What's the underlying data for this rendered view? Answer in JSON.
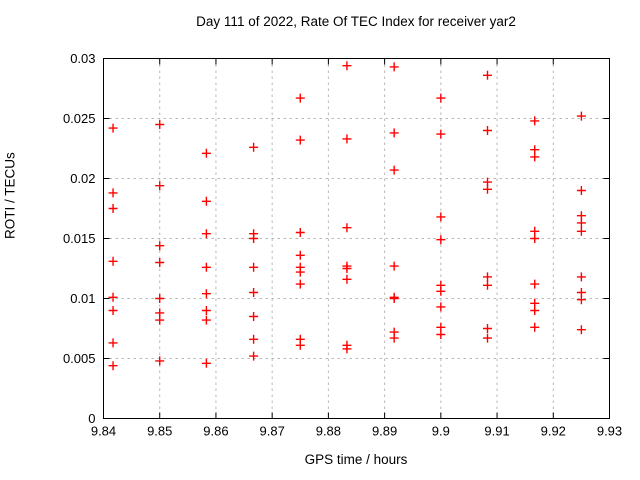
{
  "page": {
    "background": "#ffffff",
    "text_color": "#000000",
    "grid_color": "#b8b8b8",
    "axis_color": "#000000"
  },
  "chart_data": {
    "type": "scatter",
    "title": "Day 111 of 2022, Rate Of TEC Index for receiver yar2",
    "xlabel": "GPS time / hours",
    "ylabel": "ROTI / TECUs",
    "xlim": [
      9.84,
      9.93
    ],
    "ylim": [
      0,
      0.03
    ],
    "xticks": {
      "values": [
        9.84,
        9.85,
        9.86,
        9.87,
        9.88,
        9.89,
        9.9,
        9.91,
        9.92,
        9.93
      ],
      "labels": [
        "9.84",
        "9.85",
        "9.86",
        "9.87",
        "9.88",
        "9.89",
        "9.9",
        "9.91",
        "9.92",
        "9.93"
      ]
    },
    "yticks": {
      "values": [
        0,
        0.005,
        0.01,
        0.015,
        0.02,
        0.025,
        0.03
      ],
      "labels": [
        "0",
        "0.005",
        "0.01",
        "0.015",
        "0.02",
        "0.025",
        "0.03"
      ]
    },
    "grid": true,
    "legend": "none",
    "marker": {
      "shape": "plus",
      "color": "#ff0000",
      "size": 9
    },
    "series": [
      {
        "name": "ROTI",
        "points": [
          [
            9.8417,
            0.0242
          ],
          [
            9.8417,
            0.0188
          ],
          [
            9.8417,
            0.0175
          ],
          [
            9.8417,
            0.0131
          ],
          [
            9.8417,
            0.0101
          ],
          [
            9.8417,
            0.009
          ],
          [
            9.8417,
            0.0063
          ],
          [
            9.8417,
            0.0044
          ],
          [
            9.85,
            0.0245
          ],
          [
            9.85,
            0.0194
          ],
          [
            9.85,
            0.0144
          ],
          [
            9.85,
            0.013
          ],
          [
            9.85,
            0.01
          ],
          [
            9.85,
            0.0088
          ],
          [
            9.85,
            0.0082
          ],
          [
            9.85,
            0.0048
          ],
          [
            9.8583,
            0.0221
          ],
          [
            9.8583,
            0.0181
          ],
          [
            9.8583,
            0.0154
          ],
          [
            9.8583,
            0.0126
          ],
          [
            9.8583,
            0.0104
          ],
          [
            9.8583,
            0.009
          ],
          [
            9.8583,
            0.0082
          ],
          [
            9.8583,
            0.0046
          ],
          [
            9.8667,
            0.0226
          ],
          [
            9.8667,
            0.0154
          ],
          [
            9.8667,
            0.015
          ],
          [
            9.8667,
            0.0126
          ],
          [
            9.8667,
            0.0105
          ],
          [
            9.8667,
            0.0085
          ],
          [
            9.8667,
            0.0066
          ],
          [
            9.8667,
            0.0052
          ],
          [
            9.875,
            0.0267
          ],
          [
            9.875,
            0.0232
          ],
          [
            9.875,
            0.0155
          ],
          [
            9.875,
            0.0136
          ],
          [
            9.875,
            0.0126
          ],
          [
            9.875,
            0.0122
          ],
          [
            9.875,
            0.0112
          ],
          [
            9.875,
            0.0066
          ],
          [
            9.875,
            0.0061
          ],
          [
            9.8833,
            0.0294
          ],
          [
            9.8833,
            0.0233
          ],
          [
            9.8833,
            0.0159
          ],
          [
            9.8833,
            0.0127
          ],
          [
            9.8833,
            0.0125
          ],
          [
            9.8833,
            0.0116
          ],
          [
            9.8833,
            0.0061
          ],
          [
            9.8833,
            0.0058
          ],
          [
            9.8917,
            0.0293
          ],
          [
            9.8917,
            0.0238
          ],
          [
            9.8917,
            0.0207
          ],
          [
            9.8917,
            0.0127
          ],
          [
            9.8917,
            0.0101
          ],
          [
            9.8917,
            0.01
          ],
          [
            9.8917,
            0.0072
          ],
          [
            9.8917,
            0.0067
          ],
          [
            9.9,
            0.0267
          ],
          [
            9.9,
            0.0237
          ],
          [
            9.9,
            0.0168
          ],
          [
            9.9,
            0.0149
          ],
          [
            9.9,
            0.0111
          ],
          [
            9.9,
            0.0106
          ],
          [
            9.9,
            0.0093
          ],
          [
            9.9,
            0.0076
          ],
          [
            9.9,
            0.007
          ],
          [
            9.9083,
            0.0286
          ],
          [
            9.9083,
            0.024
          ],
          [
            9.9083,
            0.0197
          ],
          [
            9.9083,
            0.0191
          ],
          [
            9.9083,
            0.0118
          ],
          [
            9.9083,
            0.0111
          ],
          [
            9.9083,
            0.0075
          ],
          [
            9.9083,
            0.0067
          ],
          [
            9.9167,
            0.0248
          ],
          [
            9.9167,
            0.0224
          ],
          [
            9.9167,
            0.0218
          ],
          [
            9.9167,
            0.0156
          ],
          [
            9.9167,
            0.015
          ],
          [
            9.9167,
            0.0112
          ],
          [
            9.9167,
            0.0096
          ],
          [
            9.9167,
            0.009
          ],
          [
            9.9167,
            0.0076
          ],
          [
            9.925,
            0.0252
          ],
          [
            9.925,
            0.019
          ],
          [
            9.925,
            0.0169
          ],
          [
            9.925,
            0.0163
          ],
          [
            9.925,
            0.0156
          ],
          [
            9.925,
            0.0118
          ],
          [
            9.925,
            0.0105
          ],
          [
            9.925,
            0.0099
          ],
          [
            9.925,
            0.0074
          ]
        ]
      }
    ]
  }
}
